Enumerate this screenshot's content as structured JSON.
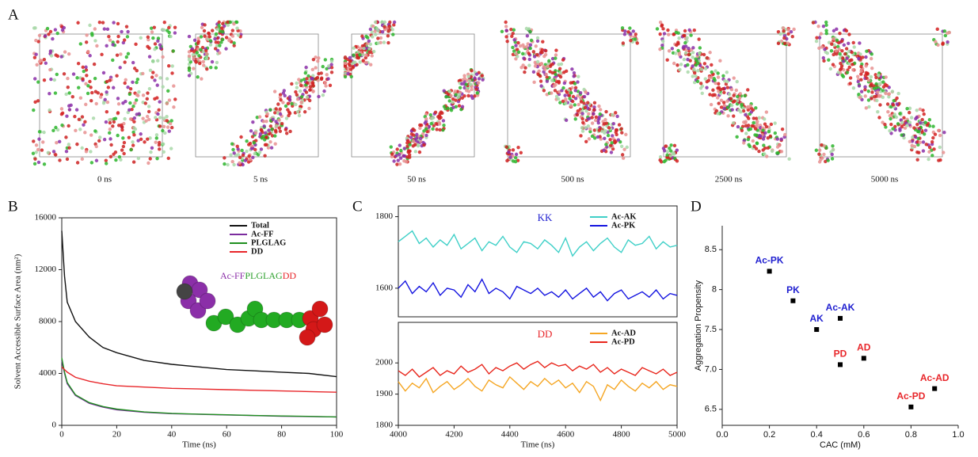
{
  "panel_a": {
    "panel_label": "A",
    "captions": [
      "0 ns",
      "5 ns",
      "50 ns",
      "500 ns",
      "2500 ns",
      "5000 ns"
    ]
  },
  "chart_data": [
    {
      "type": "line",
      "panel_label": "B",
      "y_label": "Solvent Accessible Surface Area (nm²)",
      "x_label": "Time (ns)",
      "annotation": [
        {
          "text": "Ac-FF",
          "color": "#8b2fa8"
        },
        {
          "text": "PLGLAG",
          "color": "#2ca02c"
        },
        {
          "text": "DD",
          "color": "#e8262a"
        }
      ],
      "x": [
        0,
        1,
        2,
        5,
        10,
        15,
        20,
        30,
        40,
        50,
        60,
        70,
        80,
        90,
        100
      ],
      "series": [
        {
          "name": "Total",
          "color": "#111111",
          "values": [
            15000,
            11500,
            9500,
            8000,
            6800,
            6000,
            5600,
            5000,
            4700,
            4500,
            4300,
            4200,
            4100,
            4000,
            3750
          ]
        },
        {
          "name": "Ac-FF",
          "color": "#7b2c9e",
          "values": [
            5000,
            4000,
            3200,
            2300,
            1700,
            1400,
            1200,
            1000,
            900,
            850,
            800,
            750,
            700,
            680,
            650
          ]
        },
        {
          "name": "PLGLAG",
          "color": "#1f8f1f",
          "values": [
            5200,
            4100,
            3300,
            2350,
            1750,
            1450,
            1250,
            1030,
            920,
            860,
            810,
            760,
            720,
            690,
            650
          ]
        },
        {
          "name": "DD",
          "color": "#e8262a",
          "values": [
            4500,
            4300,
            4100,
            3700,
            3400,
            3200,
            3050,
            2950,
            2850,
            2800,
            2750,
            2700,
            2650,
            2600,
            2550
          ]
        }
      ],
      "xlim": [
        0,
        100
      ],
      "xticks": [
        0,
        20,
        40,
        60,
        80,
        100
      ],
      "ylim": [
        0,
        16000
      ],
      "yticks": [
        0,
        4000,
        8000,
        12000,
        16000
      ],
      "legend": "upper right"
    },
    {
      "type": "line",
      "panel_label": "C",
      "title": "KK",
      "title_color": "#1f1fd0",
      "x": [
        4000,
        4025,
        4050,
        4075,
        4100,
        4125,
        4150,
        4175,
        4200,
        4225,
        4250,
        4275,
        4300,
        4325,
        4350,
        4375,
        4400,
        4425,
        4450,
        4475,
        4500,
        4525,
        4550,
        4575,
        4600,
        4625,
        4650,
        4675,
        4700,
        4725,
        4750,
        4775,
        4800,
        4825,
        4850,
        4875,
        4900,
        4925,
        4950,
        4975,
        5000
      ],
      "series": [
        {
          "name": "Ac-AK",
          "color": "#40d0c8",
          "values": [
            1730,
            1745,
            1760,
            1725,
            1740,
            1715,
            1735,
            1720,
            1750,
            1710,
            1725,
            1740,
            1705,
            1730,
            1720,
            1745,
            1715,
            1700,
            1730,
            1725,
            1710,
            1735,
            1720,
            1700,
            1740,
            1690,
            1715,
            1730,
            1705,
            1725,
            1740,
            1715,
            1700,
            1735,
            1720,
            1725,
            1745,
            1710,
            1730,
            1715,
            1720
          ]
        },
        {
          "name": "Ac-PK",
          "color": "#1414e0",
          "values": [
            1600,
            1620,
            1585,
            1605,
            1590,
            1615,
            1580,
            1600,
            1595,
            1575,
            1610,
            1590,
            1625,
            1585,
            1600,
            1590,
            1570,
            1605,
            1595,
            1585,
            1600,
            1580,
            1590,
            1575,
            1595,
            1570,
            1585,
            1600,
            1575,
            1590,
            1565,
            1585,
            1595,
            1570,
            1580,
            1590,
            1575,
            1595,
            1570,
            1585,
            1580
          ]
        }
      ],
      "xlim": [
        4000,
        5000
      ],
      "ylim": [
        1520,
        1830
      ],
      "yticks": [
        1600,
        1800
      ],
      "legend": "upper right"
    },
    {
      "type": "line",
      "title": "DD",
      "title_color": "#e8262a",
      "x_label": "Time (ns)",
      "x": [
        4000,
        4025,
        4050,
        4075,
        4100,
        4125,
        4150,
        4175,
        4200,
        4225,
        4250,
        4275,
        4300,
        4325,
        4350,
        4375,
        4400,
        4425,
        4450,
        4475,
        4500,
        4525,
        4550,
        4575,
        4600,
        4625,
        4650,
        4675,
        4700,
        4725,
        4750,
        4775,
        4800,
        4825,
        4850,
        4875,
        4900,
        4925,
        4950,
        4975,
        5000
      ],
      "series": [
        {
          "name": "Ac-AD",
          "color": "#f5a623",
          "values": [
            1940,
            1910,
            1935,
            1920,
            1950,
            1905,
            1925,
            1940,
            1915,
            1930,
            1950,
            1925,
            1910,
            1945,
            1930,
            1920,
            1955,
            1935,
            1915,
            1940,
            1925,
            1950,
            1930,
            1945,
            1920,
            1935,
            1905,
            1940,
            1925,
            1880,
            1930,
            1915,
            1945,
            1925,
            1910,
            1935,
            1920,
            1940,
            1915,
            1930,
            1925
          ]
        },
        {
          "name": "Ac-PD",
          "color": "#e8261c",
          "values": [
            1975,
            1960,
            1980,
            1955,
            1970,
            1985,
            1960,
            1975,
            1965,
            1990,
            1970,
            1980,
            1995,
            1965,
            1985,
            1975,
            1990,
            2000,
            1980,
            1995,
            2005,
            1985,
            2000,
            1990,
            1995,
            1975,
            1990,
            1980,
            1995,
            1970,
            1985,
            1965,
            1980,
            1970,
            1960,
            1985,
            1975,
            1965,
            1980,
            1960,
            1970
          ]
        }
      ],
      "xlim": [
        4000,
        5000
      ],
      "xticks": [
        4000,
        4200,
        4400,
        4600,
        4800,
        5000
      ],
      "ylim": [
        1800,
        2130
      ],
      "yticks": [
        1800,
        1900,
        2000
      ],
      "legend": "upper right"
    },
    {
      "type": "scatter",
      "panel_label": "D",
      "x_label": "CAC (mM)",
      "y_label": "Aggregation Propensity",
      "labels": [
        "Ac-PK",
        "PK",
        "AK",
        "Ac-AK",
        "PD",
        "AD",
        "Ac-AD",
        "Ac-PD"
      ],
      "label_colors": [
        "#1f1fd0",
        "#1f1fd0",
        "#1f1fd0",
        "#1f1fd0",
        "#e8262a",
        "#e8262a",
        "#e8262a",
        "#e8262a"
      ],
      "x": [
        0.2,
        0.3,
        0.4,
        0.5,
        0.5,
        0.6,
        0.9,
        0.8
      ],
      "values": [
        8.23,
        7.86,
        7.5,
        7.64,
        7.06,
        7.14,
        6.76,
        6.53
      ],
      "color": "#000000",
      "xlim": [
        0,
        1
      ],
      "xticks": [
        {
          "value": 0,
          "label": "0.0"
        },
        0.2,
        0.4,
        0.6,
        0.8,
        {
          "value": 1,
          "label": "1.0"
        }
      ],
      "ylim": [
        6.3,
        8.8
      ],
      "yticks": [
        6.5,
        {
          "value": 7,
          "label": "7.0"
        },
        7.5,
        8,
        8.5
      ]
    }
  ]
}
